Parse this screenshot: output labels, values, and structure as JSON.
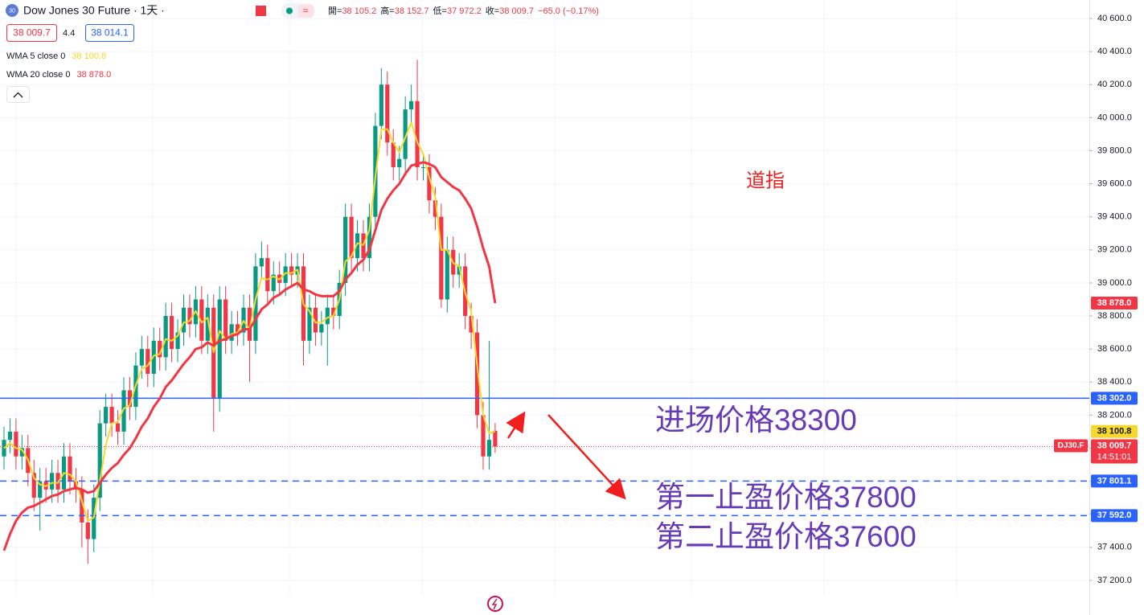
{
  "chart_data": {
    "type": "candlestick",
    "title": "Dow Jones 30 Future · 1天 ·",
    "logo": "30",
    "header": {
      "open": {
        "name": "開=",
        "text": "38 105.2"
      },
      "high": {
        "name": "高=",
        "text": "38 152.7"
      },
      "low": {
        "name": "低=",
        "text": "37 972.2"
      },
      "close": {
        "name": "收=",
        "text": "38 009.7"
      },
      "change": "−65.0 (−0.17%)",
      "bid": "38 009.7",
      "spread": "4.4",
      "ask": "38 014.1"
    },
    "up_color": "#089981",
    "down_color": "#f23645",
    "open": [
      37950,
      38050,
      38100,
      37950,
      38000,
      37850,
      37700,
      37800,
      37750,
      37850,
      37750,
      37950,
      37800,
      37750,
      37550,
      37450,
      37700,
      38150,
      38250,
      38150,
      38100,
      38350,
      38250,
      38500,
      38600,
      38450,
      38650,
      38550,
      38800,
      38600,
      38700,
      38850,
      38750,
      38900,
      38650,
      38850,
      38300,
      38900,
      38650,
      38750,
      38700,
      38850,
      38650,
      39100,
      39150,
      38950,
      39050,
      39000,
      39100,
      39050,
      39100,
      38650,
      38850,
      38700,
      38750,
      38850,
      38800,
      39000,
      39400,
      39150,
      39300,
      39150,
      39400,
      39950,
      40200,
      39850,
      39700,
      39750,
      40050,
      40100,
      39700,
      39700,
      39500,
      39400,
      38900,
      39200,
      39050,
      39100,
      38800,
      38700,
      38200,
      37950,
      38105.2
    ],
    "high": [
      38130,
      38180,
      38180,
      38080,
      38080,
      37930,
      37880,
      37880,
      37930,
      37930,
      38030,
      38030,
      37880,
      37830,
      37630,
      37780,
      38230,
      38330,
      38330,
      38230,
      38430,
      38430,
      38580,
      38680,
      38680,
      38730,
      38730,
      38880,
      38880,
      38780,
      38930,
      38930,
      38980,
      38980,
      38930,
      38930,
      38980,
      38980,
      38830,
      38830,
      38930,
      38930,
      39180,
      39250,
      39230,
      39130,
      39130,
      39180,
      39180,
      39180,
      39180,
      38930,
      38930,
      38830,
      38930,
      38930,
      39080,
      39480,
      39480,
      39380,
      39380,
      39480,
      40030,
      40300,
      40280,
      39930,
      39830,
      40130,
      40200,
      40350,
      39780,
      39780,
      39580,
      39480,
      39280,
      39280,
      39180,
      39180,
      38880,
      38780,
      38280,
      38650,
      38152.7
    ],
    "low": [
      37870,
      37970,
      37870,
      37870,
      37770,
      37620,
      37500,
      37670,
      37670,
      37670,
      37670,
      37720,
      37670,
      37400,
      37300,
      37370,
      37620,
      38070,
      38070,
      38020,
      38020,
      38170,
      38170,
      38420,
      38370,
      38370,
      38470,
      38470,
      38520,
      38520,
      38620,
      38670,
      38670,
      38570,
      38570,
      38100,
      38220,
      38570,
      38570,
      38620,
      38620,
      38400,
      38570,
      39020,
      38870,
      38870,
      38920,
      38920,
      38970,
      38970,
      38500,
      38570,
      38620,
      38620,
      38500,
      38720,
      38720,
      38920,
      39070,
      39070,
      39070,
      39070,
      39320,
      39870,
      39770,
      39620,
      39620,
      39670,
      39970,
      39620,
      39620,
      39420,
      39320,
      38850,
      38820,
      38970,
      38970,
      38720,
      38600,
      38120,
      37870,
      37870,
      37972.2
    ],
    "close": [
      38050,
      38100,
      37950,
      38000,
      37850,
      37700,
      37800,
      37750,
      37850,
      37750,
      37950,
      37800,
      37750,
      37550,
      37450,
      37700,
      38150,
      38250,
      38150,
      38100,
      38350,
      38250,
      38500,
      38600,
      38450,
      38650,
      38550,
      38800,
      38600,
      38700,
      38850,
      38750,
      38900,
      38650,
      38850,
      38300,
      38900,
      38650,
      38750,
      38700,
      38850,
      38650,
      39100,
      39150,
      38950,
      39050,
      39000,
      39100,
      39050,
      39100,
      38650,
      38850,
      38700,
      38750,
      38850,
      38800,
      39000,
      39400,
      39150,
      39300,
      39150,
      39400,
      39950,
      40200,
      39850,
      39700,
      39750,
      40050,
      40100,
      39700,
      39700,
      39500,
      39400,
      38900,
      39200,
      39050,
      39100,
      38800,
      38700,
      38200,
      37950,
      38050,
      38009.7
    ],
    "series": [
      {
        "name": "WMA 5 close 0",
        "color": "#f7d82b",
        "last_label": "38 100.8",
        "label_text_color": "#131722",
        "values": [
          38000,
          38030,
          38000,
          37990,
          37930,
          37820,
          37780,
          37770,
          37790,
          37790,
          37850,
          37840,
          37800,
          37680,
          37560,
          37580,
          37800,
          38020,
          38150,
          38160,
          38240,
          38260,
          38380,
          38480,
          38500,
          38560,
          38570,
          38660,
          38650,
          38680,
          38760,
          38770,
          38830,
          38760,
          38790,
          38580,
          38710,
          38660,
          38690,
          38700,
          38770,
          38720,
          38900,
          39030,
          39020,
          39040,
          39020,
          39060,
          39060,
          39080,
          38870,
          38830,
          38760,
          38760,
          38790,
          38800,
          38900,
          39130,
          39160,
          39240,
          39230,
          39320,
          39640,
          39930,
          39930,
          39850,
          39790,
          39880,
          39970,
          39850,
          39780,
          39640,
          39520,
          39200,
          39200,
          39120,
          39100,
          38940,
          38830,
          38500,
          38200,
          38090,
          38100.8
        ]
      },
      {
        "name": "WMA 20 close 0",
        "color": "#f23645",
        "last_label": "38 878.0",
        "label_text_color": "#ffffff",
        "values": [
          37380,
          37480,
          37560,
          37610,
          37640,
          37650,
          37670,
          37690,
          37710,
          37720,
          37740,
          37750,
          37760,
          37750,
          37730,
          37740,
          37790,
          37840,
          37880,
          37910,
          37960,
          38000,
          38060,
          38130,
          38180,
          38250,
          38300,
          38370,
          38410,
          38460,
          38510,
          38550,
          38600,
          38610,
          38640,
          38620,
          38650,
          38660,
          38680,
          38690,
          38720,
          38720,
          38780,
          38840,
          38870,
          38910,
          38930,
          38960,
          38980,
          39000,
          38960,
          38950,
          38930,
          38920,
          38920,
          38920,
          38950,
          39020,
          39060,
          39110,
          39140,
          39200,
          39320,
          39440,
          39510,
          39560,
          39600,
          39660,
          39710,
          39720,
          39730,
          39720,
          39700,
          39640,
          39610,
          39580,
          39560,
          39510,
          39450,
          39340,
          39210,
          39100,
          38878.0
        ]
      }
    ],
    "price_lines": [
      {
        "value": 38302.0,
        "label": "38 302.0",
        "color": "#2962ff",
        "style": "solid"
      },
      {
        "value": 37801.1,
        "label": "37 801.1",
        "color": "#2962ff",
        "style": "dashed"
      },
      {
        "value": 37592.0,
        "label": "37 592.0",
        "color": "#2962ff",
        "style": "dashed"
      }
    ],
    "last_price": {
      "value": 38009.7,
      "label": "38 009.7",
      "symbol": "DJ30.F",
      "time": "14:51:01",
      "color": "#f23645"
    },
    "ylim": [
      37112,
      40712
    ],
    "yticks": [
      {
        "value": 37200,
        "label": "37 200.0"
      },
      {
        "value": 37400,
        "label": "37 400.0"
      },
      {
        "value": 37600,
        "label": "37 600.0"
      },
      {
        "value": 37800,
        "label": "37 800.0"
      },
      {
        "value": 38000,
        "label": "38 000.0"
      },
      {
        "value": 38200,
        "label": "38 200.0"
      },
      {
        "value": 38400,
        "label": "38 400.0"
      },
      {
        "value": 38600,
        "label": "38 600.0"
      },
      {
        "value": 38800,
        "label": "38 800.0"
      },
      {
        "value": 39000,
        "label": "39 000.0"
      },
      {
        "value": 39200,
        "label": "39 200.0"
      },
      {
        "value": 39400,
        "label": "39 400.0"
      },
      {
        "value": 39600,
        "label": "39 600.0"
      },
      {
        "value": 39800,
        "label": "39 800.0"
      },
      {
        "value": 40000,
        "label": "40 000.0"
      },
      {
        "value": 40200,
        "label": "40 200.0"
      },
      {
        "value": 40400,
        "label": "40 400.0"
      },
      {
        "value": 40600,
        "label": "40 600.0"
      }
    ],
    "grid": true,
    "annotations": {
      "index_name": "道指",
      "entry": "进场价格38300",
      "target1": "第一止盈价格37800",
      "target2": "第二止盈价格37600"
    }
  }
}
